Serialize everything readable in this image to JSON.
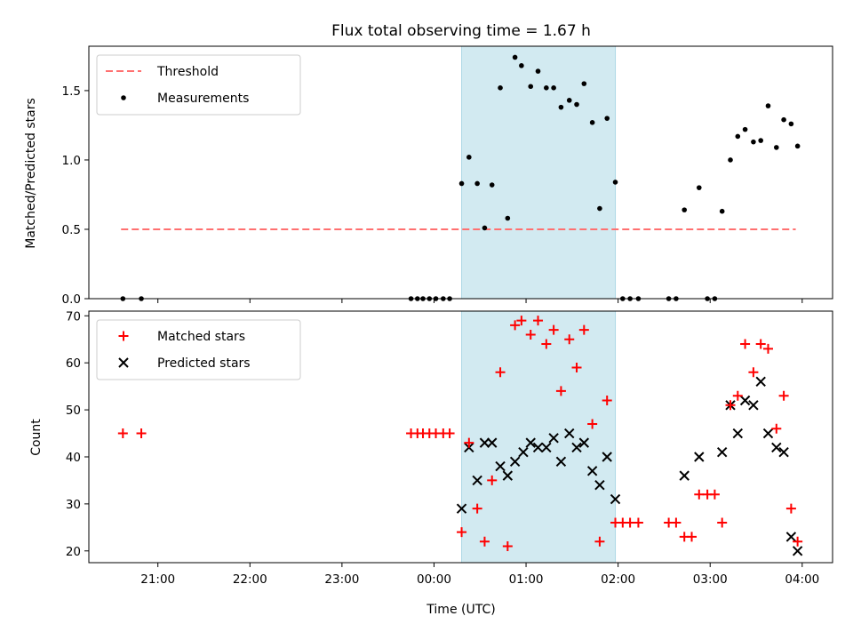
{
  "chart_data": {
    "type": "scatter",
    "title": "Flux total observing time = 1.67 h",
    "xlabel": "Time (UTC)",
    "x_tick_labels": [
      "21:00",
      "22:00",
      "23:00",
      "00:00",
      "01:00",
      "02:00",
      "03:00",
      "04:00"
    ],
    "x_tick_hours": [
      21,
      22,
      23,
      24,
      25,
      26,
      27,
      28
    ],
    "xlim_hours": [
      20.25,
      28.33
    ],
    "highlight_span_hours": [
      24.3,
      25.97
    ],
    "colors": {
      "span": "#add8e6",
      "threshold": "#ff7070",
      "measurements": "#000000",
      "matched": "#ff0000",
      "predicted": "#000000"
    },
    "panels": [
      {
        "id": "ratio",
        "ylabel": "Matched/Predicted stars",
        "ylim": [
          0,
          1.82
        ],
        "y_ticks": [
          0.0,
          0.5,
          1.0,
          1.5
        ],
        "y_tick_labels": [
          "0.0",
          "0.5",
          "1.0",
          "1.5"
        ],
        "legend": [
          "Threshold",
          "Measurements"
        ],
        "threshold": {
          "name": "Threshold",
          "value": 0.5,
          "x_range": [
            20.6,
            27.93
          ]
        },
        "measurements": {
          "name": "Measurements",
          "x": [
            20.62,
            20.82,
            23.75,
            23.82,
            23.88,
            23.95,
            24.02,
            24.1,
            24.17,
            24.3,
            24.38,
            24.47,
            24.55,
            24.63,
            24.72,
            24.8,
            24.88,
            24.95,
            25.05,
            25.13,
            25.22,
            25.3,
            25.38,
            25.47,
            25.55,
            25.63,
            25.72,
            25.8,
            25.88,
            25.97,
            26.05,
            26.13,
            26.22,
            26.55,
            26.63,
            26.72,
            26.88,
            26.97,
            27.05,
            27.13,
            27.22,
            27.3,
            27.38,
            27.47,
            27.55,
            27.63,
            27.72,
            27.8,
            27.88,
            27.95
          ],
          "y": [
            0.0,
            0.0,
            0.0,
            0.0,
            0.0,
            0.0,
            0.0,
            0.0,
            0.0,
            0.83,
            1.02,
            0.83,
            0.51,
            0.82,
            1.52,
            0.58,
            1.74,
            1.68,
            1.53,
            1.64,
            1.52,
            1.52,
            1.38,
            1.43,
            1.4,
            1.55,
            1.27,
            0.65,
            1.3,
            0.84,
            0.0,
            0.0,
            0.0,
            0.0,
            0.0,
            0.64,
            0.8,
            0.0,
            0.0,
            0.63,
            1.0,
            1.17,
            1.22,
            1.13,
            1.14,
            1.39,
            1.09,
            1.29,
            1.26,
            1.1
          ]
        }
      },
      {
        "id": "count",
        "ylabel": "Count",
        "ylim": [
          17.5,
          71
        ],
        "y_ticks": [
          20,
          30,
          40,
          50,
          60,
          70
        ],
        "y_tick_labels": [
          "20",
          "30",
          "40",
          "50",
          "60",
          "70"
        ],
        "legend": [
          "Matched stars",
          "Predicted stars"
        ],
        "matched": {
          "name": "Matched stars",
          "x": [
            20.62,
            20.82,
            23.75,
            23.82,
            23.88,
            23.95,
            24.02,
            24.1,
            24.17,
            24.3,
            24.38,
            24.47,
            24.55,
            24.63,
            24.72,
            24.8,
            24.88,
            24.95,
            25.05,
            25.13,
            25.22,
            25.3,
            25.38,
            25.47,
            25.55,
            25.63,
            25.72,
            25.8,
            25.88,
            25.97,
            26.05,
            26.13,
            26.22,
            26.55,
            26.63,
            26.72,
            26.8,
            26.88,
            26.97,
            27.05,
            27.13,
            27.22,
            27.3,
            27.38,
            27.47,
            27.55,
            27.63,
            27.72,
            27.8,
            27.88,
            27.95
          ],
          "y": [
            45,
            45,
            45,
            45,
            45,
            45,
            45,
            45,
            45,
            24,
            43,
            29,
            22,
            35,
            58,
            21,
            68,
            69,
            66,
            69,
            64,
            67,
            54,
            65,
            59,
            67,
            47,
            22,
            52,
            26,
            26,
            26,
            26,
            26,
            26,
            23,
            23,
            32,
            32,
            32,
            26,
            51,
            53,
            64,
            58,
            64,
            63,
            46,
            53,
            29,
            22
          ]
        },
        "predicted": {
          "name": "Predicted stars",
          "x": [
            24.3,
            24.38,
            24.47,
            24.55,
            24.63,
            24.72,
            24.8,
            24.88,
            24.97,
            25.05,
            25.13,
            25.22,
            25.3,
            25.38,
            25.47,
            25.55,
            25.63,
            25.72,
            25.8,
            25.88,
            25.97,
            26.72,
            26.88,
            27.13,
            27.22,
            27.3,
            27.38,
            27.47,
            27.55,
            27.63,
            27.72,
            27.8,
            27.88,
            27.95
          ],
          "y": [
            29,
            42,
            35,
            43,
            43,
            38,
            36,
            39,
            41,
            43,
            42,
            42,
            44,
            39,
            45,
            42,
            43,
            37,
            34,
            40,
            31,
            36,
            40,
            41,
            51,
            45,
            52,
            51,
            56,
            45,
            42,
            41,
            23,
            20
          ]
        }
      }
    ]
  }
}
